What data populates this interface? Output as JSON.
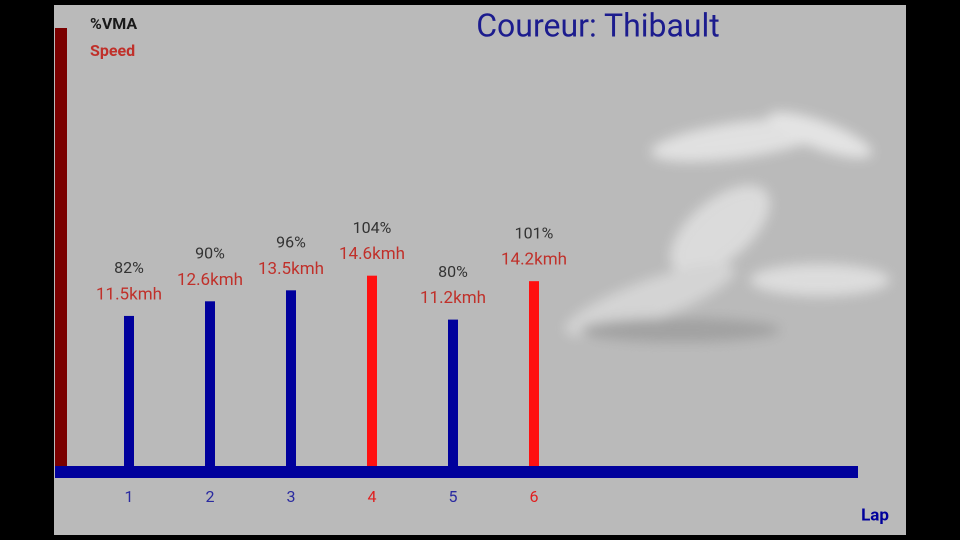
{
  "chart_data": {
    "type": "bar",
    "title": "Coureur: Thibault",
    "xlabel": "Lap",
    "categories": [
      "1",
      "2",
      "3",
      "4",
      "5",
      "6"
    ],
    "bar_colors": [
      "#00009c",
      "#00009c",
      "#00009c",
      "#ff1010",
      "#00009c",
      "#ff1010"
    ],
    "series": [
      {
        "name": "%VMA",
        "color": "#1a1a1a",
        "values": [
          82,
          90,
          96,
          104,
          80,
          101
        ],
        "value_labels": [
          "82%",
          "90%",
          "96%",
          "104%",
          "80%",
          "101%"
        ]
      },
      {
        "name": "Speed",
        "color": "#c0302a",
        "values": [
          11.5,
          12.6,
          13.5,
          14.6,
          11.2,
          14.2
        ],
        "value_labels": [
          "11.5kmh",
          "12.6kmh",
          "13.5kmh",
          "14.6kmh",
          "11.2kmh",
          "14.2kmh"
        ]
      }
    ]
  }
}
